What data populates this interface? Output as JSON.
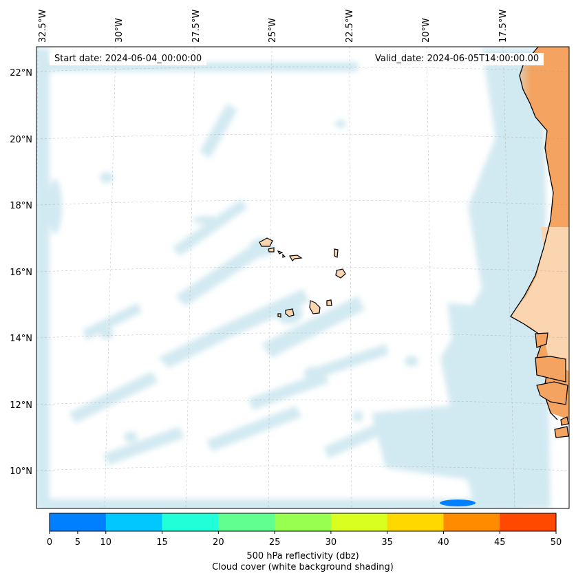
{
  "header": {
    "start_date": "Start date: 2024-06-04_00:00:00",
    "valid_date": "Valid_date: 2024-06-05T14:00:00.00"
  },
  "longitude_labels": [
    "32.5°W",
    "30°W",
    "27.5°W",
    "25°W",
    "22.5°W",
    "20°W",
    "17.5°W"
  ],
  "latitude_labels": [
    "22°N",
    "20°N",
    "18°N",
    "16°N",
    "14°N",
    "12°N",
    "10°N"
  ],
  "colorbar": {
    "ticks": [
      "0",
      "5",
      "10",
      "15",
      "20",
      "25",
      "30",
      "35",
      "40",
      "45",
      "50"
    ],
    "colors": [
      "#0080ff",
      "#00c8ff",
      "#20ffd8",
      "#60ff90",
      "#98ff50",
      "#d8ff20",
      "#ffd800",
      "#ff8c00",
      "#ff4800"
    ],
    "label": "500 hPa reflectivity (dbz)",
    "sublabel": "Cloud cover (white background shading)"
  },
  "colors": {
    "land_sahara": "#f4a460",
    "land_light": "#fbd5b0",
    "cloud": "#add8e6",
    "reflectivity_cell": "#0080ff"
  },
  "icons": [
    "coastline-icon",
    "island-icon"
  ]
}
